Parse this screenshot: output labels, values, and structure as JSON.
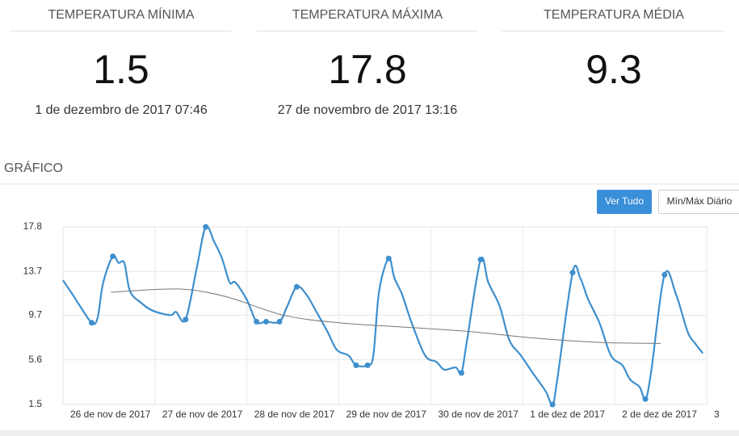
{
  "stats": [
    {
      "label": "TEMPERATURA MÍNIMA",
      "value": 1.5,
      "time": "1 de dezembro de 2017 07:46"
    },
    {
      "label": "TEMPERATURA MÁXIMA",
      "value": 17.8,
      "time": "27 de novembro de 2017 13:16"
    },
    {
      "label": "TEMPERATURA MÉDIA",
      "value": 9.3
    }
  ],
  "section_title": "GRÁFICO",
  "buttons": [
    "Ver Tudo",
    "Mín/Máx Diário"
  ],
  "chart_data": {
    "type": "line",
    "ylim": [
      1.5,
      17.8
    ],
    "yticks": [
      1.5,
      5.6,
      9.7,
      13.7,
      17.8
    ],
    "grid": true,
    "xlim": [
      "2017-11-26T00:00",
      "2017-12-03T00:00"
    ],
    "xticks": [
      {
        "value": "2017-11-26T00:00",
        "label": "26 de nov de 2017"
      },
      {
        "value": "2017-11-27T00:00",
        "label": "27 de nov de 2017"
      },
      {
        "value": "2017-11-28T00:00",
        "label": "28 de nov de 2017"
      },
      {
        "value": "2017-11-29T00:00",
        "label": "29 de nov de 2017"
      },
      {
        "value": "2017-11-30T00:00",
        "label": "30 de nov de 2017"
      },
      {
        "value": "2017-12-01T00:00",
        "label": "1 de dez de 2017"
      },
      {
        "value": "2017-12-02T00:00",
        "label": "2 de dez de 2017"
      },
      {
        "value": "2017-12-03T00:00",
        "label": "3"
      }
    ],
    "series": [
      {
        "color": "#3d8fcd",
        "x": [
          "2017-11-26T00:00",
          "2017-11-26T02:30",
          "2017-11-26T04:30",
          "2017-11-26T07:30",
          "2017-11-26T09:00",
          "2017-11-26T10:30",
          "2017-11-26T13:00",
          "2017-11-26T14:30",
          "2017-11-26T16:00",
          "2017-11-26T17:30",
          "2017-11-26T20:30",
          "2017-11-26T23:30",
          "2017-11-27T04:00",
          "2017-11-27T05:30",
          "2017-11-27T08:00",
          "2017-11-27T11:00",
          "2017-11-27T13:16",
          "2017-11-27T15:30",
          "2017-11-27T17:30",
          "2017-11-27T19:30",
          "2017-11-27T21:00",
          "2017-11-28T00:00",
          "2017-11-28T02:30",
          "2017-11-28T05:00",
          "2017-11-28T08:30",
          "2017-11-28T10:30",
          "2017-11-28T13:00",
          "2017-11-28T15:30",
          "2017-11-28T18:00",
          "2017-11-28T21:00",
          "2017-11-28T23:30",
          "2017-11-29T02:30",
          "2017-11-29T04:30",
          "2017-11-29T07:30",
          "2017-11-29T09:00",
          "2017-11-29T10:30",
          "2017-11-29T13:00",
          "2017-11-29T14:30",
          "2017-11-29T16:30",
          "2017-11-29T19:00",
          "2017-11-29T22:30",
          "2017-11-30T01:30",
          "2017-11-30T03:30",
          "2017-11-30T06:30",
          "2017-11-30T08:00",
          "2017-11-30T09:30",
          "2017-11-30T13:00",
          "2017-11-30T15:00",
          "2017-11-30T18:00",
          "2017-11-30T20:30",
          "2017-11-30T23:30",
          "2017-12-01T03:00",
          "2017-12-01T06:00",
          "2017-12-01T07:46",
          "2017-12-01T09:00",
          "2017-12-01T13:00",
          "2017-12-01T15:00",
          "2017-12-01T17:00",
          "2017-12-01T20:00",
          "2017-12-01T23:00",
          "2017-12-02T02:00",
          "2017-12-02T04:00",
          "2017-12-02T06:30",
          "2017-12-02T08:00",
          "2017-12-02T09:30",
          "2017-12-02T13:00",
          "2017-12-02T16:00",
          "2017-12-02T19:00",
          "2017-12-02T21:00",
          "2017-12-02T23:00"
        ],
        "values": [
          12.9,
          11.6,
          10.5,
          9.0,
          9.4,
          12.7,
          15.1,
          14.5,
          14.5,
          11.9,
          10.8,
          10.1,
          9.7,
          10.0,
          9.3,
          14.2,
          17.8,
          16.4,
          14.9,
          12.7,
          12.7,
          11.1,
          9.1,
          9.1,
          9.1,
          10.5,
          12.3,
          11.6,
          10.1,
          8.2,
          6.5,
          6.0,
          5.1,
          5.1,
          6.0,
          11.9,
          14.9,
          13.1,
          11.6,
          9.0,
          6.0,
          5.4,
          4.7,
          4.9,
          4.4,
          7.5,
          14.8,
          12.7,
          10.5,
          7.4,
          6.0,
          4.2,
          2.7,
          1.5,
          3.8,
          13.6,
          13.1,
          11.2,
          9.0,
          6.0,
          5.1,
          3.8,
          3.1,
          2.0,
          4.5,
          13.4,
          11.6,
          8.2,
          7.1,
          6.2
        ]
      },
      {
        "color": "#777777",
        "x": [
          "2017-11-26T12:30",
          "2017-11-27T06:00",
          "2017-11-27T18:30",
          "2017-11-28T09:30",
          "2017-11-29T00:00",
          "2017-11-29T17:00",
          "2017-11-30T10:00",
          "2017-12-01T03:00",
          "2017-12-01T20:00",
          "2017-12-02T12:00"
        ],
        "values": [
          11.8,
          12.1,
          11.4,
          9.7,
          9.0,
          8.6,
          8.2,
          7.6,
          7.2,
          7.1
        ]
      }
    ]
  }
}
